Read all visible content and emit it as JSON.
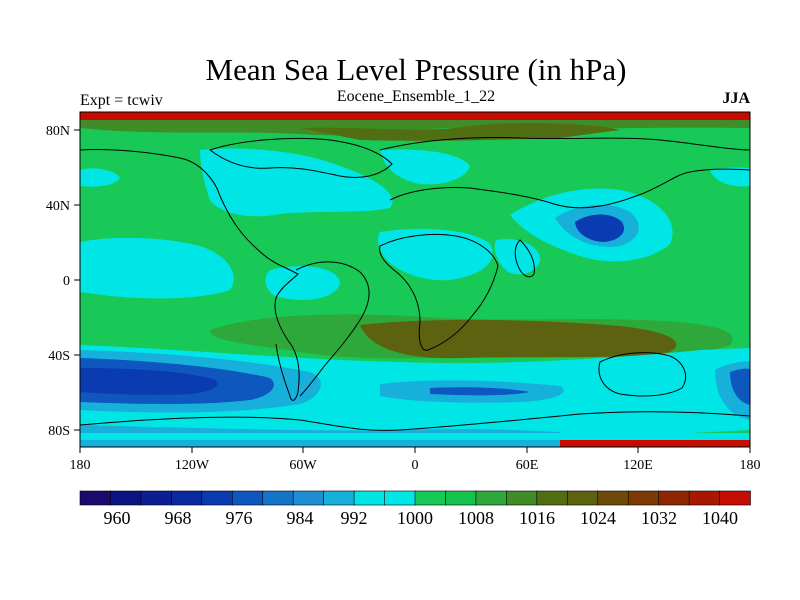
{
  "map": {
    "title": "Mean Sea Level Pressure (in hPa)",
    "left_string": "Expt = tcwiv",
    "center_string": "Eocene_Ensemble_1_22",
    "right_string": "JJA",
    "projection": "cylindrical-equidistant",
    "x_ticks": [
      "180",
      "120W",
      "60W",
      "0",
      "60E",
      "120E",
      "180"
    ],
    "y_ticks": [
      "80N",
      "40N",
      "0",
      "40S",
      "80S"
    ],
    "colorbar": {
      "labels": [
        "960",
        "968",
        "976",
        "984",
        "992",
        "1000",
        "1008",
        "1016",
        "1024",
        "1032",
        "1040"
      ],
      "colors": [
        "#1a0a6e",
        "#0e1384",
        "#0d1d93",
        "#0a2aa0",
        "#0b3bb0",
        "#0d57be",
        "#1474c8",
        "#1e8ed3",
        "#17b0db",
        "#00e4e4",
        "#00e6e6",
        "#19c957",
        "#14c44e",
        "#2ea83a",
        "#3f8c28",
        "#526e12",
        "#5c6210",
        "#6e4a08",
        "#7c3a04",
        "#8e2602",
        "#a81800",
        "#c40c00"
      ]
    },
    "dominant_colors": {
      "very_high": "#c40c00",
      "high": "#5c6210",
      "mid_high": "#2ea83a",
      "normal": "#19c957",
      "mid_low": "#00e6e6",
      "low": "#17b0db",
      "very_low": "#0b3bb0"
    }
  }
}
